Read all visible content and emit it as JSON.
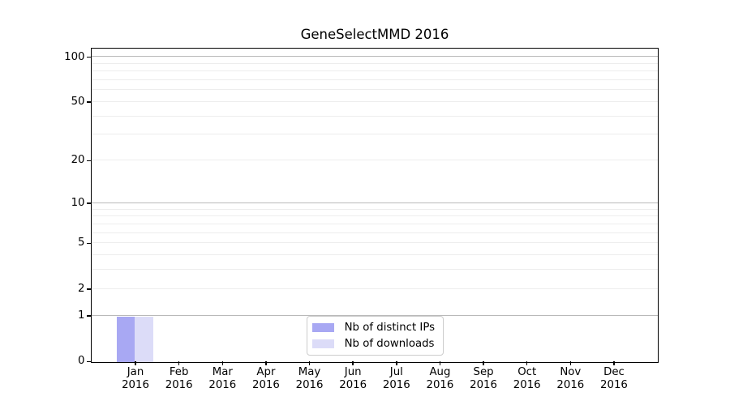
{
  "chart_data": {
    "type": "bar",
    "title": "GeneSelectMMD 2016",
    "xlabel": "",
    "ylabel": "",
    "year": "2016",
    "months": [
      "Jan",
      "Feb",
      "Mar",
      "Apr",
      "May",
      "Jun",
      "Jul",
      "Aug",
      "Sep",
      "Oct",
      "Nov",
      "Dec"
    ],
    "series": [
      {
        "name": "Nb of distinct IPs",
        "color": "#a8a8f3",
        "values": [
          1,
          0,
          0,
          0,
          0,
          0,
          0,
          0,
          0,
          0,
          0,
          0
        ]
      },
      {
        "name": "Nb of downloads",
        "color": "#dcdcf8",
        "values": [
          1,
          0,
          0,
          0,
          0,
          0,
          0,
          0,
          0,
          0,
          0,
          0
        ]
      }
    ],
    "y_scale": "log1p",
    "ylim": [
      0,
      113
    ],
    "y_tick_labels": [
      0,
      1,
      2,
      5,
      10,
      20,
      50,
      100
    ],
    "y_decade_gridlines": [
      1,
      10,
      100
    ],
    "y_minor_gridlines": [
      2,
      3,
      4,
      5,
      6,
      7,
      8,
      9,
      20,
      30,
      40,
      50,
      60,
      70,
      80,
      90
    ],
    "grid": "on",
    "legend_position": "inside-bottom-center"
  },
  "colors": {
    "background": "#ffffff",
    "axis": "#000000",
    "grid_decade": "#b9b9b9",
    "grid_minor": "#ededed",
    "legend_border": "#cccccc",
    "bar_distinct_ips": "#a8a8f3",
    "bar_downloads": "#dcdcf8"
  }
}
